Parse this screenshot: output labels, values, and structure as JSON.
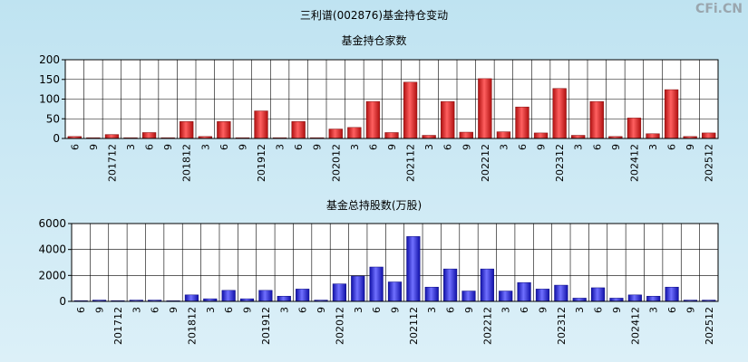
{
  "page_title": "三利谱(002876)基金持仓变动",
  "watermark": "CFi.CN",
  "chart_data": [
    {
      "type": "bar",
      "title": "基金持仓家数",
      "color": "#e02020",
      "ylim": [
        0,
        200
      ],
      "yticks": [
        0,
        50,
        100,
        150,
        200
      ],
      "categories": [
        "6",
        "9",
        "201712",
        "3",
        "6",
        "9",
        "201812",
        "3",
        "6",
        "9",
        "201912",
        "3",
        "6",
        "9",
        "202012",
        "3",
        "6",
        "9",
        "202112",
        "3",
        "6",
        "9",
        "202212",
        "3",
        "6",
        "9",
        "202312",
        "3",
        "6",
        "9",
        "202412",
        "3",
        "6",
        "9",
        "202512"
      ],
      "values": [
        5,
        2,
        10,
        2,
        15,
        2,
        43,
        5,
        43,
        2,
        70,
        2,
        43,
        2,
        24,
        28,
        94,
        15,
        143,
        8,
        94,
        16,
        152,
        17,
        80,
        14,
        127,
        8,
        94,
        5,
        52,
        12,
        124,
        5,
        14
      ]
    },
    {
      "type": "bar",
      "title": "基金总持股数(万股)",
      "color": "#2020e0",
      "ylim": [
        0,
        6000
      ],
      "yticks": [
        0,
        2000,
        4000,
        6000
      ],
      "categories": [
        "6",
        "9",
        "201712",
        "3",
        "6",
        "9",
        "201812",
        "3",
        "6",
        "9",
        "201912",
        "3",
        "6",
        "9",
        "202012",
        "3",
        "6",
        "9",
        "202112",
        "3",
        "6",
        "9",
        "202212",
        "3",
        "6",
        "9",
        "202312",
        "3",
        "6",
        "9",
        "202412",
        "3",
        "6",
        "9",
        "202512"
      ],
      "values": [
        60,
        100,
        60,
        100,
        100,
        50,
        500,
        200,
        850,
        200,
        850,
        400,
        950,
        100,
        1350,
        1950,
        2650,
        1500,
        5000,
        1100,
        2500,
        800,
        2500,
        800,
        1450,
        950,
        1250,
        250,
        1050,
        250,
        500,
        400,
        1100,
        100,
        100
      ]
    }
  ]
}
